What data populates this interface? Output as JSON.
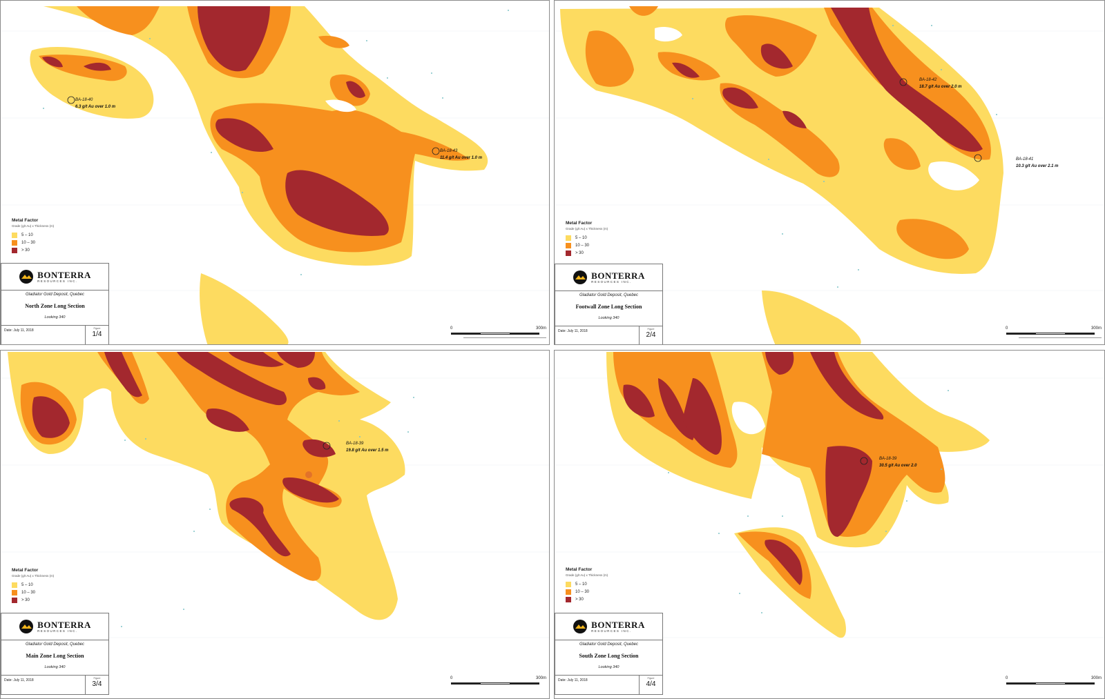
{
  "legend": {
    "title": "Metal Factor",
    "subtitle": "Grade (g/t Au) x Thickness (m)",
    "classes": [
      {
        "label": "5 – 10",
        "color": "#fddb60"
      },
      {
        "label": "10 – 30",
        "color": "#f7901e"
      },
      {
        "label": "> 30",
        "color": "#a3282e"
      }
    ]
  },
  "company": {
    "name": "BONTERRA",
    "tagline": "RESOURCES INC."
  },
  "deposit": "Gladiator Gold Deposit, Quebec",
  "looking": "Looking 340",
  "date": "Date: July 11, 2018",
  "figure_label": "Figure",
  "scale": {
    "start": "0",
    "end": "300m"
  },
  "panels": [
    {
      "title": "North Zone Long Section",
      "figure": "1/4",
      "holes": [
        {
          "id": "BA-18-40",
          "result": "6.3 g/t Au over 1.0 m"
        },
        {
          "id": "BA-18-43",
          "result": "11.4 g/t Au over 1.0 m"
        }
      ]
    },
    {
      "title": "Footwall Zone Long Section",
      "figure": "2/4",
      "holes": [
        {
          "id": "BA-18-42",
          "result": "18.7 g/t Au over 2.0 m"
        },
        {
          "id": "BA-18-41",
          "result": "10.3 g/t Au over 2.1 m"
        }
      ]
    },
    {
      "title": "Main Zone Long Section",
      "figure": "3/4",
      "holes": [
        {
          "id": "BA-18-39",
          "result": "19.8  g/t Au over 1.5 m"
        }
      ]
    },
    {
      "title": "South Zone Long Section",
      "figure": "4/4",
      "holes": [
        {
          "id": "BA-18-39",
          "result": "30.5 g/t Au over 2.0"
        }
      ]
    }
  ]
}
